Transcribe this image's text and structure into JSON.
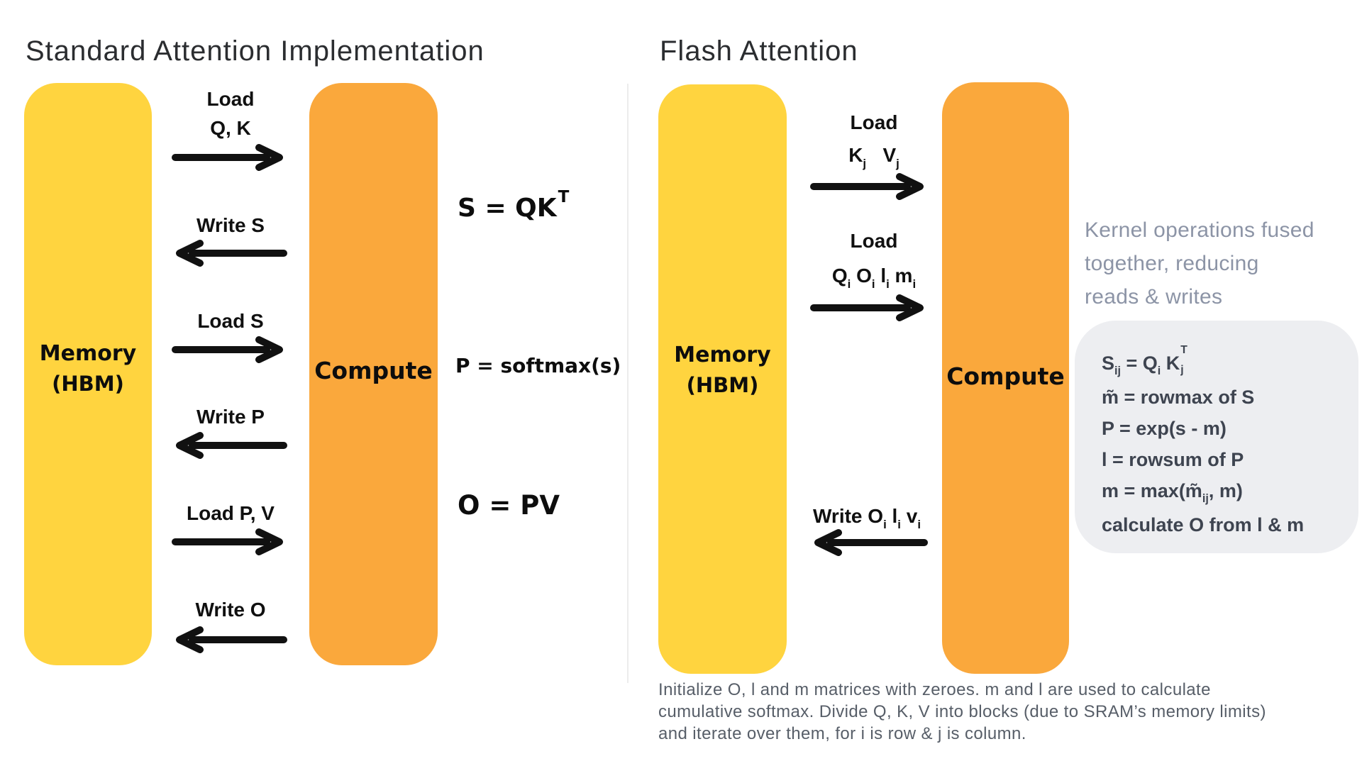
{
  "palette": {
    "memory_box_yellow": "#FFD43F",
    "compute_box_orange": "#FAA83C",
    "arrow_black": "#111111",
    "note_gray": "#8C94A6",
    "formula_box_bg": "#EDEEF1",
    "formula_text": "#3E4450",
    "caption_gray": "#575E68"
  },
  "left_panel": {
    "title": "Standard Attention Implementation",
    "memory_box": {
      "line1": "Memory",
      "line2": "(HBM)"
    },
    "compute_box": {
      "label": "Compute"
    },
    "flows": [
      {
        "line1": "Load",
        "line2": "Q, K",
        "direction": "right"
      },
      {
        "line1": "Write S",
        "direction": "left"
      },
      {
        "line1": "Load S",
        "direction": "right"
      },
      {
        "line1": "Write P",
        "direction": "left"
      },
      {
        "line1": "Load P, V",
        "direction": "right"
      },
      {
        "line1": "Write O",
        "direction": "left"
      }
    ],
    "formulas": {
      "s": [
        {
          "t": "t",
          "v": "S = QK"
        },
        {
          "t": "sup",
          "v": "T"
        }
      ],
      "p": [
        {
          "t": "t",
          "v": "P = softmax(s)"
        }
      ],
      "o": [
        {
          "t": "t",
          "v": "O = PV"
        }
      ]
    }
  },
  "right_panel": {
    "title": "Flash Attention",
    "memory_box": {
      "line1": "Memory",
      "line2": "(HBM)"
    },
    "compute_box": {
      "label": "Compute"
    },
    "flows": [
      {
        "line1": [
          {
            "t": "t",
            "v": "Load"
          }
        ],
        "line2": [
          {
            "t": "t",
            "v": "K"
          },
          {
            "t": "sub",
            "v": "j"
          },
          {
            "t": "t",
            "v": "   "
          },
          {
            "t": "t",
            "v": "V"
          },
          {
            "t": "sub",
            "v": "j"
          }
        ],
        "direction": "right"
      },
      {
        "line1": [
          {
            "t": "t",
            "v": "Load"
          }
        ],
        "line2": [
          {
            "t": "t",
            "v": "Q"
          },
          {
            "t": "sub",
            "v": "i"
          },
          {
            "t": "t",
            "v": " O"
          },
          {
            "t": "sub",
            "v": "i"
          },
          {
            "t": "t",
            "v": " l"
          },
          {
            "t": "sub",
            "v": "i"
          },
          {
            "t": "t",
            "v": " m"
          },
          {
            "t": "sub",
            "v": "i"
          }
        ],
        "direction": "right"
      },
      {
        "line1": [
          {
            "t": "t",
            "v": "Write O"
          },
          {
            "t": "sub",
            "v": "i"
          },
          {
            "t": "t",
            "v": " l"
          },
          {
            "t": "sub",
            "v": "i"
          },
          {
            "t": "t",
            "v": " v"
          },
          {
            "t": "sub",
            "v": "i"
          }
        ],
        "direction": "left"
      }
    ],
    "note_lines": [
      "Kernel operations fused",
      "together, reducing",
      "reads & writes"
    ],
    "formula_box_lines": [
      [
        {
          "t": "t",
          "v": "S"
        },
        {
          "t": "sub",
          "v": "ij"
        },
        {
          "t": "t",
          "v": " = Q"
        },
        {
          "t": "sub",
          "v": "i"
        },
        {
          "t": "t",
          "v": " K"
        },
        {
          "t": "stack",
          "sup": "T",
          "sub": "j"
        }
      ],
      [
        {
          "t": "t",
          "v": "m̃ = rowmax of S"
        }
      ],
      [
        {
          "t": "t",
          "v": "P = exp(s - m)"
        }
      ],
      [
        {
          "t": "t",
          "v": "l = rowsum of P"
        }
      ],
      [
        {
          "t": "t",
          "v": "m = max(m̃"
        },
        {
          "t": "sub",
          "v": "ij"
        },
        {
          "t": "t",
          "v": ", m)"
        }
      ],
      [
        {
          "t": "t",
          "v": "calculate O from l & m"
        }
      ]
    ],
    "caption_lines": [
      "Initialize O, l and m matrices with zeroes. m and l are used to calculate",
      "cumulative softmax. Divide Q, K, V into blocks (due to SRAM’s memory limits)",
      "and iterate over them, for i is row & j is column."
    ]
  }
}
